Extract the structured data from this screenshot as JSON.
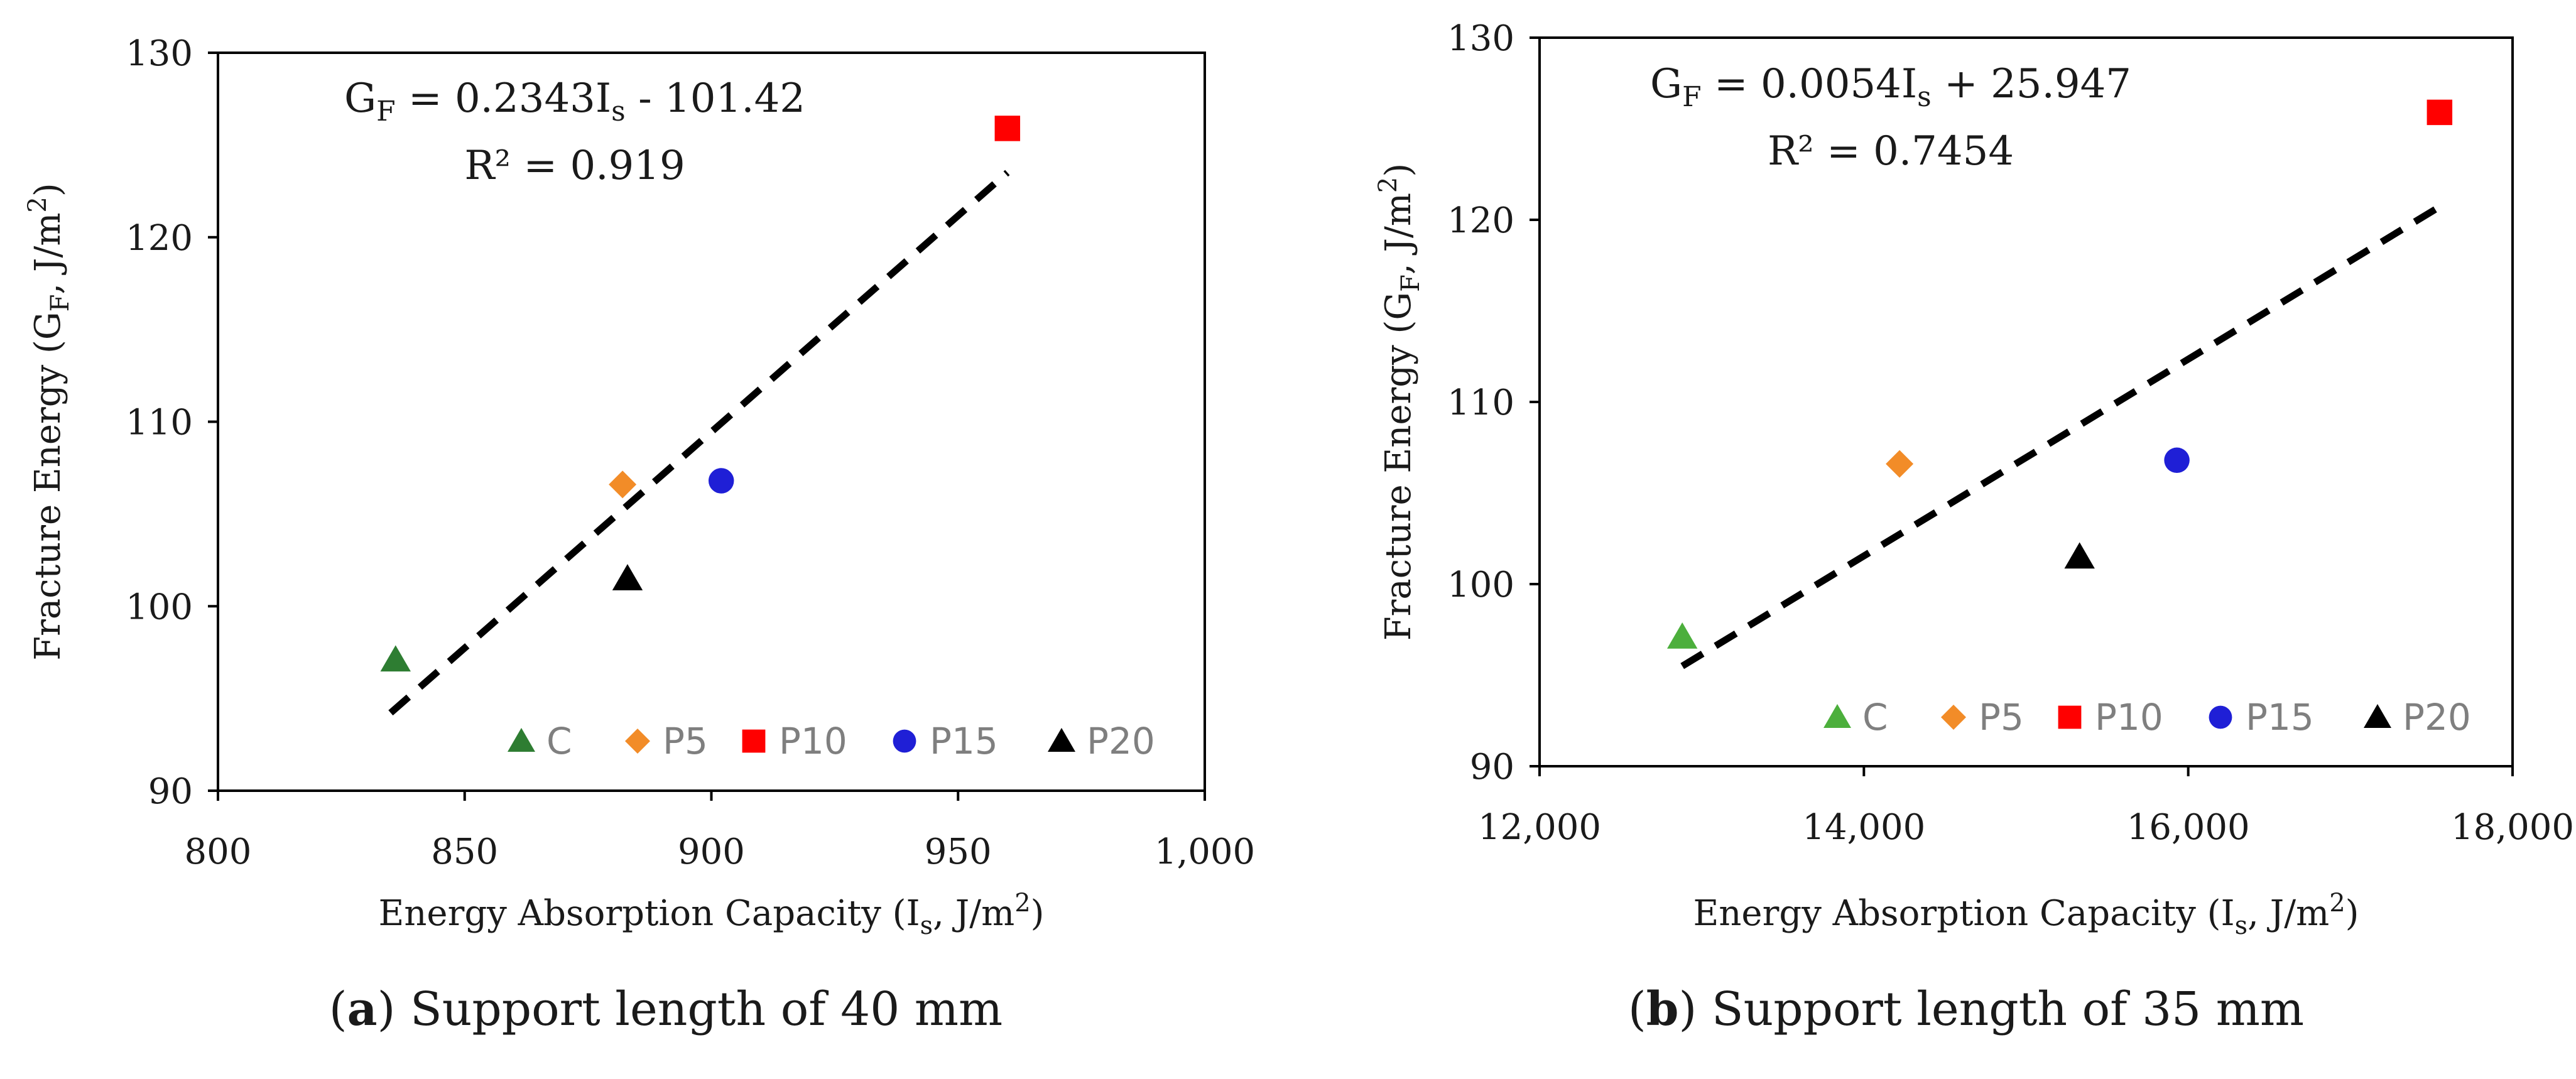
{
  "chart_data": [
    {
      "type": "scatter",
      "panel_id": "a",
      "caption": {
        "label": "a",
        "open": "(",
        "close": ")",
        "text": " Support length of 40 mm"
      },
      "xlabel": {
        "pre": "Energy Absorption Capacity (I",
        "sub": "s",
        "mid": ", J/m",
        "sup": "2",
        "post": ")"
      },
      "ylabel": {
        "pre": "Fracture Energy (G",
        "sub": "F",
        "mid": ", J/m",
        "sup": "2",
        "post": ")"
      },
      "xlim": [
        800,
        1000
      ],
      "ylim": [
        90,
        130
      ],
      "x_ticks": [
        800,
        850,
        900,
        950,
        1000
      ],
      "x_tick_labels": [
        "800",
        "850",
        "900",
        "950",
        "1,000"
      ],
      "y_ticks": [
        90,
        100,
        110,
        120,
        130
      ],
      "y_tick_labels": [
        "90",
        "100",
        "110",
        "120",
        "130"
      ],
      "equation": {
        "pre": "G",
        "sub": "F",
        "mid": " = 0.2343I",
        "sub2": "s",
        "post": " - 101.42"
      },
      "r2": "R² = 0.919",
      "trendline": {
        "slope": 0.2343,
        "intercept": -101.42,
        "x_range": [
          835,
          960
        ]
      },
      "series": [
        {
          "name": "C",
          "marker": "triangle",
          "color": "#2e7d32",
          "points": [
            [
              836,
              97.1
            ]
          ]
        },
        {
          "name": "P5",
          "marker": "diamond",
          "color": "#f28c28",
          "points": [
            [
              882,
              106.6
            ]
          ]
        },
        {
          "name": "P10",
          "marker": "square",
          "color": "#ff0000",
          "points": [
            [
              960,
              125.9
            ]
          ]
        },
        {
          "name": "P15",
          "marker": "circle",
          "color": "#1f1fd6",
          "points": [
            [
              902,
              106.8
            ]
          ]
        },
        {
          "name": "P20",
          "marker": "triangle",
          "color": "#000000",
          "points": [
            [
              883,
              101.5
            ]
          ]
        }
      ]
    },
    {
      "type": "scatter",
      "panel_id": "b",
      "caption": {
        "label": "b",
        "open": "(",
        "close": ")",
        "text": " Support length of 35 mm"
      },
      "xlabel": {
        "pre": "Energy Absorption Capacity (I",
        "sub": "s",
        "mid": ", J/m",
        "sup": "2",
        "post": ")"
      },
      "ylabel": {
        "pre": "Fracture Energy (G",
        "sub": "F",
        "mid": ", J/m",
        "sup": "2",
        "post": ")"
      },
      "xlim": [
        12000,
        18000
      ],
      "ylim": [
        90,
        130
      ],
      "x_ticks": [
        12000,
        14000,
        16000,
        18000
      ],
      "x_tick_labels": [
        "12,000",
        "14,000",
        "16,000",
        "18,000"
      ],
      "y_ticks": [
        90,
        100,
        110,
        120,
        130
      ],
      "y_tick_labels": [
        "90",
        "100",
        "110",
        "120",
        "130"
      ],
      "equation": {
        "pre": "G",
        "sub": "F",
        "mid": " = 0.0054I",
        "sub2": "s",
        "post": " + 25.947"
      },
      "r2": "R² = 0.7454",
      "trendline": {
        "slope": 0.0054,
        "intercept": 25.947,
        "x_range": [
          12880,
          17550
        ]
      },
      "series": [
        {
          "name": "C",
          "marker": "triangle",
          "color": "#4caf3c",
          "points": [
            [
              12880,
              97.1
            ]
          ]
        },
        {
          "name": "P5",
          "marker": "diamond",
          "color": "#f28c28",
          "points": [
            [
              14220,
              106.6
            ]
          ]
        },
        {
          "name": "P10",
          "marker": "square",
          "color": "#ff0000",
          "points": [
            [
              17550,
              125.9
            ]
          ]
        },
        {
          "name": "P15",
          "marker": "circle",
          "color": "#1f1fd6",
          "points": [
            [
              15930,
              106.8
            ]
          ]
        },
        {
          "name": "P20",
          "marker": "triangle",
          "color": "#000000",
          "points": [
            [
              15330,
              101.5
            ]
          ]
        }
      ]
    }
  ],
  "colors": {
    "axis": "#000000",
    "trendline": "#000000",
    "legend_text": "#7f7f7f",
    "text": "#1a1a1a"
  }
}
